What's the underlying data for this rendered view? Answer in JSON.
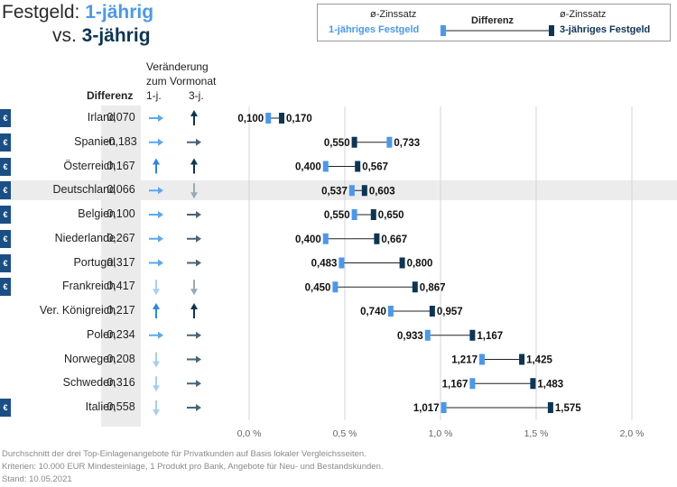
{
  "header": {
    "title_prefix": "Festgeld: ",
    "title_light": "1-jährig",
    "title_vs": "vs. ",
    "title_dark": "3-jährig"
  },
  "legend": {
    "zins_left": "ø-Zinssatz",
    "zins_right": "ø-Zinssatz",
    "diff_label": "Differenz",
    "label_1j": "1-jähriges Festgeld",
    "label_3j": "3-jähriges Festgeld"
  },
  "columns": {
    "diff_header": "Differenz",
    "change_header_line1": "Veränderung",
    "change_header_line2": "zum Vormonat",
    "col_1j": "1-j.",
    "col_3j": "3-j.",
    "euro_symbol": "€"
  },
  "colors": {
    "light": "#4a98ee",
    "dark": "#0d3554",
    "arrow_right_1j": "#5aa8f5",
    "arrow_right_3j": "#4a6478",
    "arrow_up_1j": "#2e86e6",
    "arrow_up_3j": "#0d3554",
    "arrow_down_1j": "#a9cdf2",
    "arrow_down_3j": "#9aa9b6"
  },
  "rows": [
    {
      "country": "Irland",
      "euro": true,
      "diff": "0,070",
      "chg1": "right",
      "chg3": "up",
      "v1": 0.1,
      "v3": 0.17,
      "label1": "0,100",
      "label3": "0,170"
    },
    {
      "country": "Spanien",
      "euro": true,
      "diff": "-0,183",
      "chg1": "right",
      "chg3": "right",
      "v1": 0.733,
      "v3": 0.55,
      "label1": "0,733",
      "label3": "0,550"
    },
    {
      "country": "Österreich",
      "euro": true,
      "diff": "0,167",
      "chg1": "up",
      "chg3": "up",
      "v1": 0.4,
      "v3": 0.567,
      "label1": "0,400",
      "label3": "0,567"
    },
    {
      "country": "Deutschland",
      "euro": true,
      "diff": "0,066",
      "chg1": "right",
      "chg3": "down",
      "v1": 0.537,
      "v3": 0.603,
      "label1": "0,537",
      "label3": "0,603",
      "highlight": true
    },
    {
      "country": "Belgien",
      "euro": true,
      "diff": "0,100",
      "chg1": "right",
      "chg3": "right",
      "v1": 0.55,
      "v3": 0.65,
      "label1": "0,550",
      "label3": "0,650"
    },
    {
      "country": "Niederlande",
      "euro": true,
      "diff": "0,267",
      "chg1": "right",
      "chg3": "right",
      "v1": 0.4,
      "v3": 0.667,
      "label1": "0,400",
      "label3": "0,667"
    },
    {
      "country": "Portugal",
      "euro": true,
      "diff": "0,317",
      "chg1": "right",
      "chg3": "right",
      "v1": 0.483,
      "v3": 0.8,
      "label1": "0,483",
      "label3": "0,800"
    },
    {
      "country": "Frankreich",
      "euro": true,
      "diff": "0,417",
      "chg1": "down",
      "chg3": "down",
      "v1": 0.45,
      "v3": 0.867,
      "label1": "0,450",
      "label3": "0,867"
    },
    {
      "country": "Ver. Königreich",
      "euro": false,
      "diff": "0,217",
      "chg1": "up",
      "chg3": "up",
      "v1": 0.74,
      "v3": 0.957,
      "label1": "0,740",
      "label3": "0,957"
    },
    {
      "country": "Polen",
      "euro": false,
      "diff": "0,234",
      "chg1": "right",
      "chg3": "right",
      "v1": 0.933,
      "v3": 1.167,
      "label1": "0,933",
      "label3": "1,167"
    },
    {
      "country": "Norwegen",
      "euro": false,
      "diff": "0,208",
      "chg1": "down",
      "chg3": "right",
      "v1": 1.217,
      "v3": 1.425,
      "label1": "1,217",
      "label3": "1,425"
    },
    {
      "country": "Schweden",
      "euro": false,
      "diff": "0,316",
      "chg1": "down",
      "chg3": "right",
      "v1": 1.167,
      "v3": 1.483,
      "label1": "1,167",
      "label3": "1,483"
    },
    {
      "country": "Italien",
      "euro": true,
      "diff": "0,558",
      "chg1": "down",
      "chg3": "right",
      "v1": 1.017,
      "v3": 1.575,
      "label1": "1,017",
      "label3": "1,575"
    }
  ],
  "chart_data": {
    "type": "dumbbell",
    "title": "Festgeld: 1-jährig vs. 3-jährig",
    "categories": [
      "Irland",
      "Spanien",
      "Österreich",
      "Deutschland",
      "Belgien",
      "Niederlande",
      "Portugal",
      "Frankreich",
      "Ver. Königreich",
      "Polen",
      "Norwegen",
      "Schweden",
      "Italien"
    ],
    "series": [
      {
        "name": "1-jähriges Festgeld",
        "values": [
          0.1,
          0.733,
          0.4,
          0.537,
          0.55,
          0.4,
          0.483,
          0.45,
          0.74,
          0.933,
          1.217,
          1.167,
          1.017
        ]
      },
      {
        "name": "3-jähriges Festgeld",
        "values": [
          0.17,
          0.55,
          0.567,
          0.603,
          0.65,
          0.667,
          0.8,
          0.867,
          0.957,
          1.167,
          1.425,
          1.483,
          1.575
        ]
      }
    ],
    "xlim": [
      0,
      2.0
    ],
    "xticks": [
      0,
      0.5,
      1.0,
      1.5,
      2.0
    ],
    "xtick_labels": [
      "0,0 %",
      "0,5 %",
      "1,0 %",
      "1,5 %",
      "2,0 %"
    ],
    "grid": true
  },
  "footer": {
    "line1": "Durchschnitt der drei Top-Einlagenangebote für Privatkunden auf Basis lokaler Vergleichsseiten.",
    "line2": "Kriterien: 10.000 EUR Mindesteinlage, 1 Produkt pro Bank, Angebote für Neu- und Bestandskunden.",
    "line3": "Stand: 10.05.2021"
  }
}
